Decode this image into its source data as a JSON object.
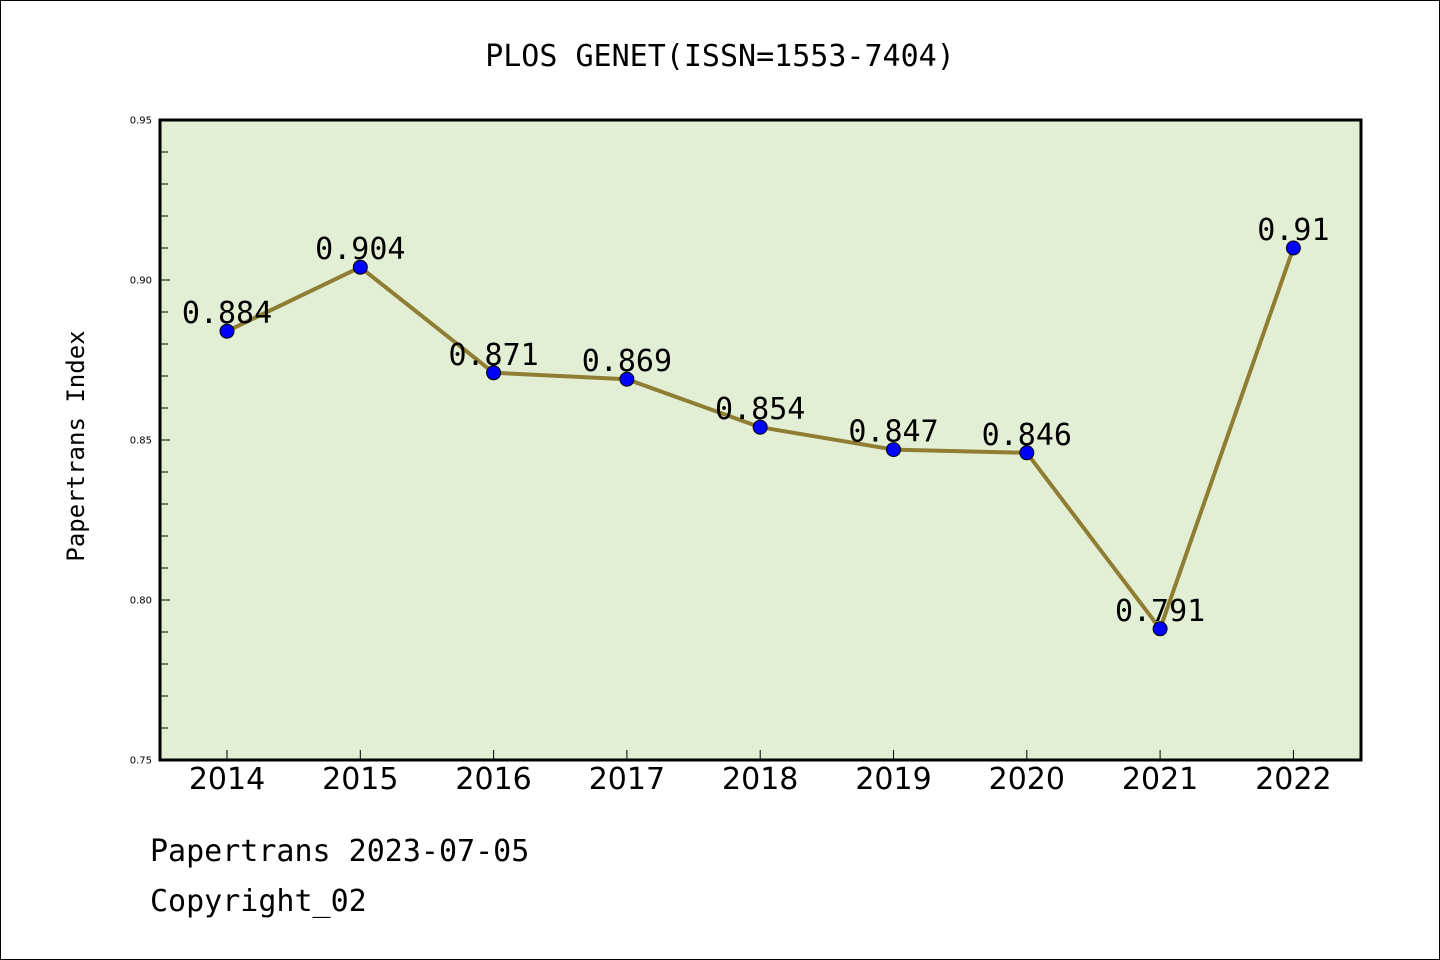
{
  "chart_data": {
    "type": "line",
    "title": "PLOS GENET(ISSN=1553-7404)",
    "ylabel": "Papertrans Index",
    "xlabel": "",
    "categories": [
      "2014",
      "2015",
      "2016",
      "2017",
      "2018",
      "2019",
      "2020",
      "2021",
      "2022"
    ],
    "values": [
      0.884,
      0.904,
      0.871,
      0.869,
      0.854,
      0.847,
      0.846,
      0.791,
      0.91
    ],
    "data_labels": [
      "0.884",
      "0.904",
      "0.871",
      "0.869",
      "0.854",
      "0.847",
      "0.846",
      "0.791",
      "0.91"
    ],
    "ylim": [
      0.75,
      0.95
    ],
    "yticks": [
      "0.75",
      "0.80",
      "0.85",
      "0.90",
      "0.95"
    ],
    "grid": false,
    "colors": {
      "plot_background": "#e2efd5",
      "line": "#8f7d33",
      "marker": "#0000ff"
    }
  },
  "footer": {
    "line1": "Papertrans 2023-07-05",
    "line2": "Copyright_02"
  }
}
